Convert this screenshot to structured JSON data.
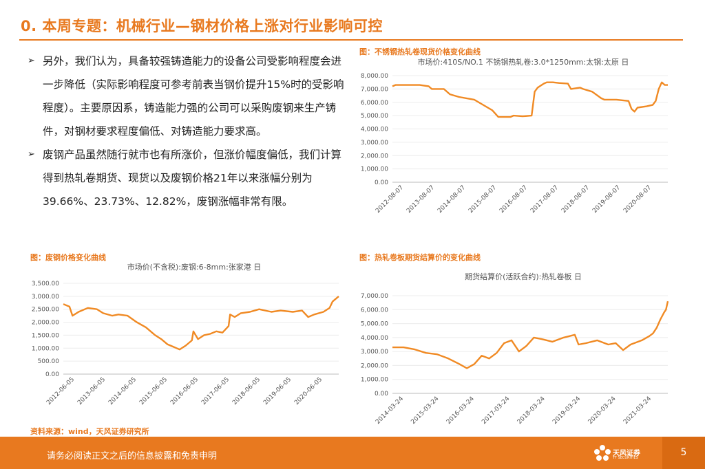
{
  "title": "0. 本周专题：机械行业—钢材价格上涨对行业影响可控",
  "bullets": [
    "另外，我们认为，具备较强铸造能力的设备公司受影响程度会进一步降低（实际影响程度可参考前表当钢价提升15%时的受影响程度）。主要原因系，铸造能力强的公司可以采购废钢来生产铸件，对钢材要求程度偏低、对铸造能力要求高。",
    "废钢产品虽然随行就市也有所涨价，但涨价幅度偏低，我们计算得到热轧卷期货、现货以及废钢价格21年以来涨幅分别为39.66%、23.73%、12.82%，废钢涨幅非常有限。"
  ],
  "bullet_marker": "➢",
  "captions": {
    "chart1": "图：不锈钢热轧卷现货价格变化曲线",
    "chart2": "图：废钢价格变化曲线",
    "chart3": "图：热轧卷板期货结算价的变化曲线"
  },
  "source": "资料来源：wind，天风证券研究所",
  "footer": {
    "disclaimer": "请务必阅读正文之后的信息披露和免责申明",
    "logo_name": "天风证券",
    "logo_sub": "TF SECURITIES",
    "page_number": "5"
  },
  "colors": {
    "accent": "#e8791f",
    "line": "#f08a24"
  },
  "chart_data": [
    {
      "type": "line",
      "title": "市场价:410S/NO.1 不锈钢热轧卷:3.0*1250mm:太钢:太原 日",
      "ylim": [
        0,
        8000
      ],
      "yticks": [
        "0.00",
        "1,000.00",
        "2,000.00",
        "3,000.00",
        "4,000.00",
        "5,000.00",
        "6,000.00",
        "7,000.00",
        "8,000.00"
      ],
      "xticks": [
        "2012-08-07",
        "2013-08-07",
        "2014-08-07",
        "2015-08-07",
        "2016-08-07",
        "2017-08-07",
        "2018-08-07",
        "2019-08-07",
        "2020-08-07"
      ],
      "xrange": [
        2012.3,
        2021.4
      ],
      "series": [
        {
          "points": [
            [
              2012.3,
              7200
            ],
            [
              2012.4,
              7300
            ],
            [
              2013.2,
              7300
            ],
            [
              2013.5,
              7200
            ],
            [
              2013.6,
              7000
            ],
            [
              2014.0,
              7000
            ],
            [
              2014.2,
              6600
            ],
            [
              2014.5,
              6400
            ],
            [
              2015.0,
              6200
            ],
            [
              2015.3,
              5800
            ],
            [
              2015.6,
              5400
            ],
            [
              2015.8,
              4900
            ],
            [
              2016.2,
              4900
            ],
            [
              2016.3,
              5000
            ],
            [
              2016.6,
              4950
            ],
            [
              2016.9,
              5000
            ],
            [
              2017.0,
              6800
            ],
            [
              2017.1,
              7100
            ],
            [
              2017.3,
              7400
            ],
            [
              2017.4,
              7500
            ],
            [
              2017.6,
              7500
            ],
            [
              2017.8,
              7450
            ],
            [
              2018.1,
              7400
            ],
            [
              2018.2,
              7000
            ],
            [
              2018.5,
              7100
            ],
            [
              2018.6,
              7000
            ],
            [
              2018.9,
              6800
            ],
            [
              2019.2,
              6300
            ],
            [
              2019.3,
              6200
            ],
            [
              2019.7,
              6200
            ],
            [
              2020.1,
              6100
            ],
            [
              2020.2,
              5500
            ],
            [
              2020.3,
              5300
            ],
            [
              2020.4,
              5600
            ],
            [
              2020.7,
              5700
            ],
            [
              2020.9,
              5800
            ],
            [
              2021.0,
              6100
            ],
            [
              2021.1,
              7000
            ],
            [
              2021.2,
              7500
            ],
            [
              2021.3,
              7300
            ],
            [
              2021.4,
              7300
            ]
          ]
        }
      ]
    },
    {
      "type": "line",
      "title": "市场价(不含税):废钢:6-8mm:张家港 日",
      "ylim": [
        0,
        3500
      ],
      "yticks": [
        "0.00",
        "500.00",
        "1,000.00",
        "1,500.00",
        "2,000.00",
        "2,500.00",
        "3,000.00",
        "3,500.00"
      ],
      "xticks": [
        "2012-06-05",
        "2013-06-05",
        "2014-06-05",
        "2015-06-05",
        "2016-06-05",
        "2017-06-05",
        "2018-06-05",
        "2019-06-05",
        "2020-06-05"
      ],
      "xrange": [
        2012.2,
        2021.2
      ],
      "series": [
        {
          "points": [
            [
              2012.2,
              2700
            ],
            [
              2012.4,
              2600
            ],
            [
              2012.5,
              2250
            ],
            [
              2012.7,
              2400
            ],
            [
              2013.0,
              2550
            ],
            [
              2013.3,
              2500
            ],
            [
              2013.5,
              2350
            ],
            [
              2013.8,
              2250
            ],
            [
              2014.0,
              2300
            ],
            [
              2014.3,
              2250
            ],
            [
              2014.6,
              2000
            ],
            [
              2014.9,
              1800
            ],
            [
              2015.2,
              1500
            ],
            [
              2015.4,
              1350
            ],
            [
              2015.6,
              1150
            ],
            [
              2015.8,
              1050
            ],
            [
              2016.0,
              950
            ],
            [
              2016.2,
              1100
            ],
            [
              2016.4,
              1300
            ],
            [
              2016.45,
              1650
            ],
            [
              2016.6,
              1350
            ],
            [
              2016.8,
              1500
            ],
            [
              2017.0,
              1550
            ],
            [
              2017.2,
              1650
            ],
            [
              2017.4,
              1600
            ],
            [
              2017.6,
              1850
            ],
            [
              2017.65,
              2300
            ],
            [
              2017.8,
              2200
            ],
            [
              2018.0,
              2350
            ],
            [
              2018.3,
              2400
            ],
            [
              2018.6,
              2500
            ],
            [
              2019.0,
              2400
            ],
            [
              2019.3,
              2450
            ],
            [
              2019.7,
              2400
            ],
            [
              2020.0,
              2450
            ],
            [
              2020.2,
              2200
            ],
            [
              2020.4,
              2300
            ],
            [
              2020.7,
              2400
            ],
            [
              2020.9,
              2550
            ],
            [
              2021.0,
              2800
            ],
            [
              2021.2,
              3000
            ]
          ]
        }
      ]
    },
    {
      "type": "line",
      "title": "期货结算价(活跃合约):热轧卷板 日",
      "ylim": [
        0,
        7000
      ],
      "yticks": [
        "0.00",
        "1,000.00",
        "2,000.00",
        "3,000.00",
        "4,000.00",
        "5,000.00",
        "6,000.00",
        "7,000.00"
      ],
      "xticks": [
        "2014-03-24",
        "2015-03-24",
        "2016-03-24",
        "2017-03-24",
        "2018-03-24",
        "2019-03-24",
        "2020-03-24",
        "2021-03-24"
      ],
      "xrange": [
        2014.0,
        2021.4
      ],
      "series": [
        {
          "points": [
            [
              2014.0,
              3300
            ],
            [
              2014.3,
              3300
            ],
            [
              2014.6,
              3150
            ],
            [
              2014.9,
              2900
            ],
            [
              2015.2,
              2800
            ],
            [
              2015.5,
              2500
            ],
            [
              2015.8,
              2100
            ],
            [
              2016.0,
              1800
            ],
            [
              2016.2,
              2100
            ],
            [
              2016.4,
              2700
            ],
            [
              2016.6,
              2500
            ],
            [
              2016.8,
              2900
            ],
            [
              2017.0,
              3600
            ],
            [
              2017.2,
              3800
            ],
            [
              2017.4,
              3000
            ],
            [
              2017.6,
              3400
            ],
            [
              2017.8,
              4000
            ],
            [
              2018.0,
              3900
            ],
            [
              2018.3,
              3700
            ],
            [
              2018.6,
              4000
            ],
            [
              2018.9,
              4200
            ],
            [
              2019.0,
              3500
            ],
            [
              2019.2,
              3600
            ],
            [
              2019.5,
              3800
            ],
            [
              2019.8,
              3500
            ],
            [
              2020.0,
              3600
            ],
            [
              2020.2,
              3100
            ],
            [
              2020.4,
              3500
            ],
            [
              2020.7,
              3800
            ],
            [
              2020.9,
              4100
            ],
            [
              2021.0,
              4300
            ],
            [
              2021.1,
              4700
            ],
            [
              2021.2,
              5300
            ],
            [
              2021.3,
              5800
            ],
            [
              2021.35,
              6000
            ],
            [
              2021.4,
              6600
            ]
          ]
        }
      ]
    }
  ]
}
